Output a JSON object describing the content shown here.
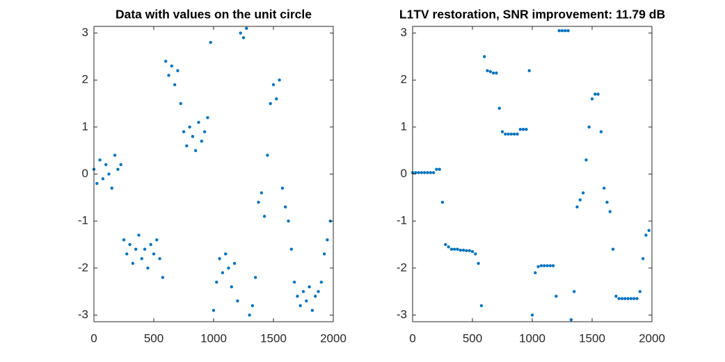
{
  "chart_data": [
    {
      "type": "scatter",
      "title": "Data with values on the unit circle",
      "color": "#0072bd",
      "xlim": [
        0,
        2000
      ],
      "xticks": [
        0,
        500,
        1000,
        1500,
        2000
      ],
      "ylim": [
        -3.1416,
        3.1416
      ],
      "yticks": [
        -3,
        -2,
        -1,
        0,
        1,
        2,
        3
      ],
      "x": [
        0,
        25,
        50,
        75,
        100,
        125,
        150,
        175,
        200,
        225,
        250,
        275,
        300,
        325,
        350,
        375,
        400,
        425,
        450,
        475,
        500,
        525,
        550,
        575,
        600,
        625,
        650,
        675,
        700,
        725,
        750,
        775,
        800,
        825,
        850,
        875,
        900,
        925,
        950,
        975,
        1000,
        1025,
        1050,
        1075,
        1100,
        1125,
        1150,
        1175,
        1200,
        1225,
        1250,
        1275,
        1300,
        1325,
        1350,
        1375,
        1400,
        1425,
        1450,
        1475,
        1500,
        1525,
        1550,
        1575,
        1600,
        1625,
        1650,
        1675,
        1700,
        1725,
        1750,
        1775,
        1800,
        1825,
        1850,
        1875,
        1900,
        1925,
        1950,
        1975
      ],
      "y": [
        0.1,
        -0.2,
        0.3,
        -0.1,
        0.2,
        0.0,
        -0.3,
        0.4,
        0.1,
        0.2,
        -1.4,
        -1.7,
        -1.5,
        -1.9,
        -1.6,
        -1.3,
        -1.8,
        -1.6,
        -2.0,
        -1.5,
        -1.7,
        -1.4,
        -1.8,
        -2.2,
        2.4,
        2.1,
        2.3,
        1.9,
        2.2,
        1.5,
        0.9,
        0.6,
        1.0,
        0.8,
        0.5,
        1.1,
        0.7,
        0.9,
        1.2,
        2.8,
        -2.9,
        -2.3,
        -1.8,
        -2.1,
        -1.7,
        -2.0,
        -2.4,
        -1.9,
        -2.7,
        3.0,
        2.9,
        3.1,
        -3.0,
        -2.8,
        -2.2,
        -0.6,
        -0.4,
        -0.9,
        0.4,
        1.5,
        1.9,
        1.6,
        2.0,
        -0.3,
        -0.7,
        -1.0,
        -1.6,
        -2.3,
        -2.6,
        -2.8,
        -2.5,
        -2.7,
        -2.4,
        -2.9,
        -2.6,
        -2.5,
        -2.3,
        -1.7,
        -1.4,
        -1.0
      ]
    },
    {
      "type": "scatter",
      "title": "L1TV restoration, SNR improvement: 11.79 dB",
      "color": "#0072bd",
      "xlim": [
        0,
        2000
      ],
      "xticks": [
        0,
        500,
        1000,
        1500,
        2000
      ],
      "ylim": [
        -3.1416,
        3.1416
      ],
      "yticks": [
        -3,
        -2,
        -1,
        0,
        1,
        2,
        3
      ],
      "x": [
        0,
        25,
        50,
        75,
        100,
        125,
        150,
        175,
        200,
        225,
        250,
        275,
        300,
        325,
        350,
        375,
        400,
        425,
        450,
        475,
        500,
        525,
        550,
        575,
        600,
        625,
        650,
        675,
        700,
        725,
        750,
        775,
        800,
        825,
        850,
        875,
        900,
        925,
        950,
        975,
        1000,
        1025,
        1050,
        1075,
        1100,
        1125,
        1150,
        1175,
        1200,
        1225,
        1250,
        1275,
        1300,
        1325,
        1350,
        1375,
        1400,
        1425,
        1450,
        1475,
        1500,
        1525,
        1550,
        1575,
        1600,
        1625,
        1650,
        1675,
        1700,
        1725,
        1750,
        1775,
        1800,
        1825,
        1850,
        1875,
        1900,
        1925,
        1950,
        1975
      ],
      "y": [
        0.03,
        0.03,
        0.03,
        0.03,
        0.03,
        0.03,
        0.03,
        0.03,
        0.1,
        0.1,
        -0.6,
        -1.5,
        -1.55,
        -1.6,
        -1.6,
        -1.6,
        -1.62,
        -1.62,
        -1.63,
        -1.63,
        -1.65,
        -1.7,
        -1.9,
        -2.8,
        2.5,
        2.2,
        2.18,
        2.15,
        2.15,
        1.4,
        0.9,
        0.85,
        0.85,
        0.85,
        0.85,
        0.85,
        0.95,
        0.95,
        0.95,
        2.2,
        -3.0,
        -2.1,
        -1.97,
        -1.95,
        -1.95,
        -1.95,
        -1.95,
        -1.95,
        -2.6,
        3.05,
        3.05,
        3.05,
        3.05,
        -3.1,
        -2.5,
        -0.7,
        -0.55,
        -0.4,
        0.3,
        1.0,
        1.6,
        1.7,
        1.7,
        0.9,
        -0.3,
        -0.6,
        -0.8,
        -1.6,
        -2.6,
        -2.65,
        -2.65,
        -2.65,
        -2.65,
        -2.65,
        -2.65,
        -2.65,
        -2.5,
        -1.8,
        -1.3,
        -1.2
      ]
    }
  ]
}
